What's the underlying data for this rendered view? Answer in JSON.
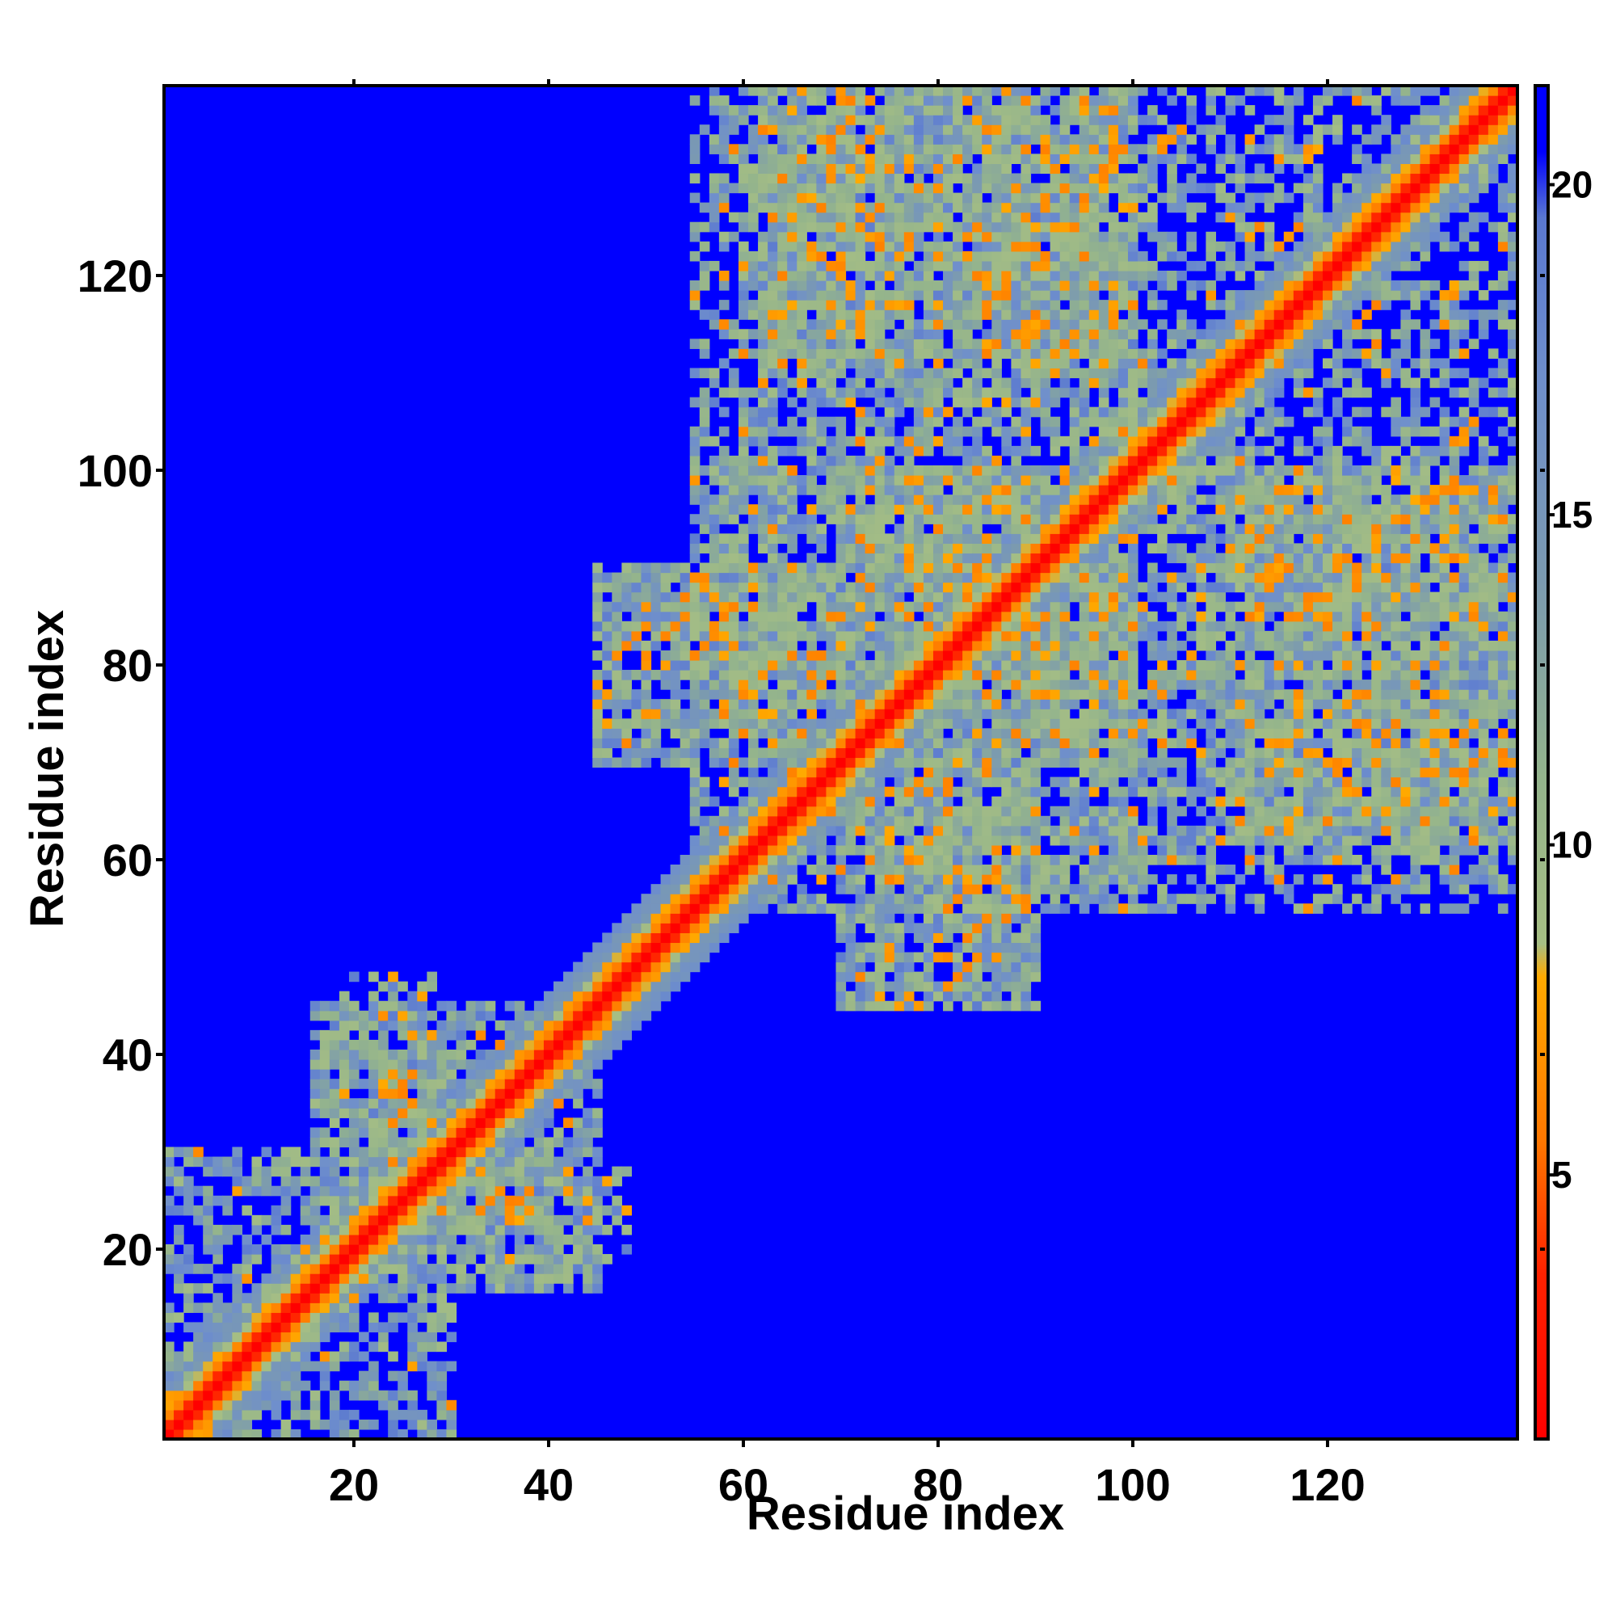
{
  "chart_data": {
    "type": "heatmap",
    "title": "",
    "xlabel": "Residue index",
    "ylabel": "Residue index",
    "n_residues": 139,
    "xlim": [
      0.5,
      139.5
    ],
    "ylim": [
      0.5,
      139.5
    ],
    "xticks": [
      20,
      40,
      60,
      80,
      100,
      120
    ],
    "yticks": [
      20,
      40,
      60,
      80,
      100,
      120
    ],
    "colorbar": {
      "range": [
        1,
        21.5
      ],
      "ticks": [
        5,
        10,
        15,
        20
      ],
      "stops": [
        {
          "value": 1,
          "color": "#ff0000"
        },
        {
          "value": 3.5,
          "color": "#ff2200"
        },
        {
          "value": 5.5,
          "color": "#ff7700"
        },
        {
          "value": 8,
          "color": "#ffaa00"
        },
        {
          "value": 8.5,
          "color": "#a6be84"
        },
        {
          "value": 11,
          "color": "#94b48c"
        },
        {
          "value": 14,
          "color": "#7b9ab0"
        },
        {
          "value": 17,
          "color": "#6f8fcc"
        },
        {
          "value": 19.5,
          "color": "#5a78d0"
        },
        {
          "value": 20.5,
          "color": "#0000ff"
        },
        {
          "value": 21.5,
          "color": "#0000ff"
        }
      ]
    },
    "value_description": "Pairwise residue distance matrix (symmetric); diagonal ~0, blue = beyond cutoff",
    "background_color": "#0000ff",
    "diagonal_color": "#ff0000",
    "contact_regions": [
      {
        "i": [
          1,
          30
        ],
        "j": [
          1,
          30
        ],
        "strength": 0.6
      },
      {
        "i": [
          16,
          45
        ],
        "j": [
          16,
          45
        ],
        "strength": 0.6
      },
      {
        "i": [
          30,
          48
        ],
        "j": [
          17,
          28
        ],
        "strength": 0.5
      },
      {
        "i": [
          16,
          30
        ],
        "j": [
          28,
          44
        ],
        "strength": 0.5
      },
      {
        "i": [
          45,
          100
        ],
        "j": [
          70,
          90
        ],
        "strength": 0.55
      },
      {
        "i": [
          70,
          90
        ],
        "j": [
          45,
          100
        ],
        "strength": 0.55
      },
      {
        "i": [
          60,
          100
        ],
        "j": [
          55,
          139
        ],
        "strength": 0.5
      },
      {
        "i": [
          80,
          139
        ],
        "j": [
          55,
          100
        ],
        "strength": 0.5
      },
      {
        "i": [
          95,
          139
        ],
        "j": [
          95,
          139
        ],
        "strength": 0.55
      },
      {
        "i": [
          62,
          98
        ],
        "j": [
          110,
          139
        ],
        "strength": 0.5
      },
      {
        "i": [
          110,
          139
        ],
        "j": [
          62,
          98
        ],
        "strength": 0.5
      }
    ],
    "hot_spots": [
      {
        "i": 86,
        "j": 118,
        "value": 6
      },
      {
        "i": 90,
        "j": 114,
        "value": 6
      },
      {
        "i": 115,
        "j": 89,
        "value": 6
      },
      {
        "i": 113,
        "j": 93,
        "value": 6
      },
      {
        "i": 78,
        "j": 68,
        "value": 6
      },
      {
        "i": 82,
        "j": 56,
        "value": 6
      },
      {
        "i": 85,
        "j": 58,
        "value": 6
      },
      {
        "i": 53,
        "j": 84,
        "value": 6
      },
      {
        "i": 48,
        "j": 82,
        "value": 6
      },
      {
        "i": 126,
        "j": 73,
        "value": 6
      },
      {
        "i": 132,
        "j": 98,
        "value": 6
      },
      {
        "i": 116,
        "j": 124,
        "value": 6
      },
      {
        "i": 37,
        "j": 25,
        "value": 6
      },
      {
        "i": 25,
        "j": 34,
        "value": 6
      },
      {
        "i": 70,
        "j": 135,
        "value": 6
      },
      {
        "i": 104,
        "j": 134,
        "value": 6
      }
    ]
  }
}
